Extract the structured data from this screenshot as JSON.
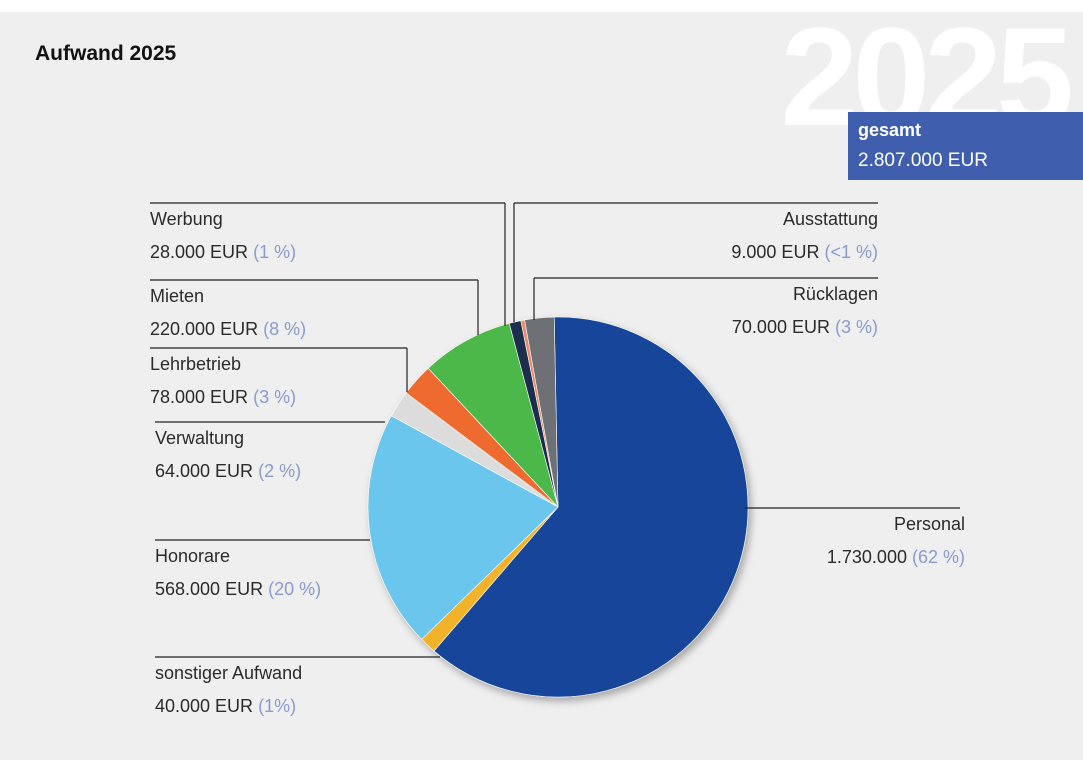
{
  "chart_data": {
    "type": "pie",
    "title": "Aufwand 2025",
    "year": "2025",
    "total_caption": "gesamt",
    "total": {
      "value": 2807000,
      "label": "2.807.000 EUR"
    },
    "categories": [
      "Personal",
      "sonstiger Aufwand",
      "Honorare",
      "Verwaltung",
      "Lehrbetrieb",
      "Mieten",
      "Werbung",
      "Ausstattung",
      "Rücklagen"
    ],
    "values": [
      1730000,
      40000,
      568000,
      64000,
      78000,
      220000,
      28000,
      9000,
      70000
    ],
    "value_labels": [
      "1.730.000",
      "40.000 EUR",
      "568.000 EUR",
      "64.000 EUR",
      "78.000 EUR",
      "220.000 EUR",
      "28.000 EUR",
      "9.000 EUR",
      "70.000 EUR"
    ],
    "share_labels": [
      "(62 %)",
      "(1%)",
      "(20 %)",
      "(2 %)",
      "(3 %)",
      "(8 %)",
      "(1 %)",
      "(<1 %)",
      "(3 %)"
    ],
    "colors": [
      "#17449a",
      "#f2b22a",
      "#6bc6ec",
      "#dcdcdc",
      "#ee6a2f",
      "#4bb849",
      "#1b2f4e",
      "#e98a6a",
      "#6d6f74"
    ]
  }
}
